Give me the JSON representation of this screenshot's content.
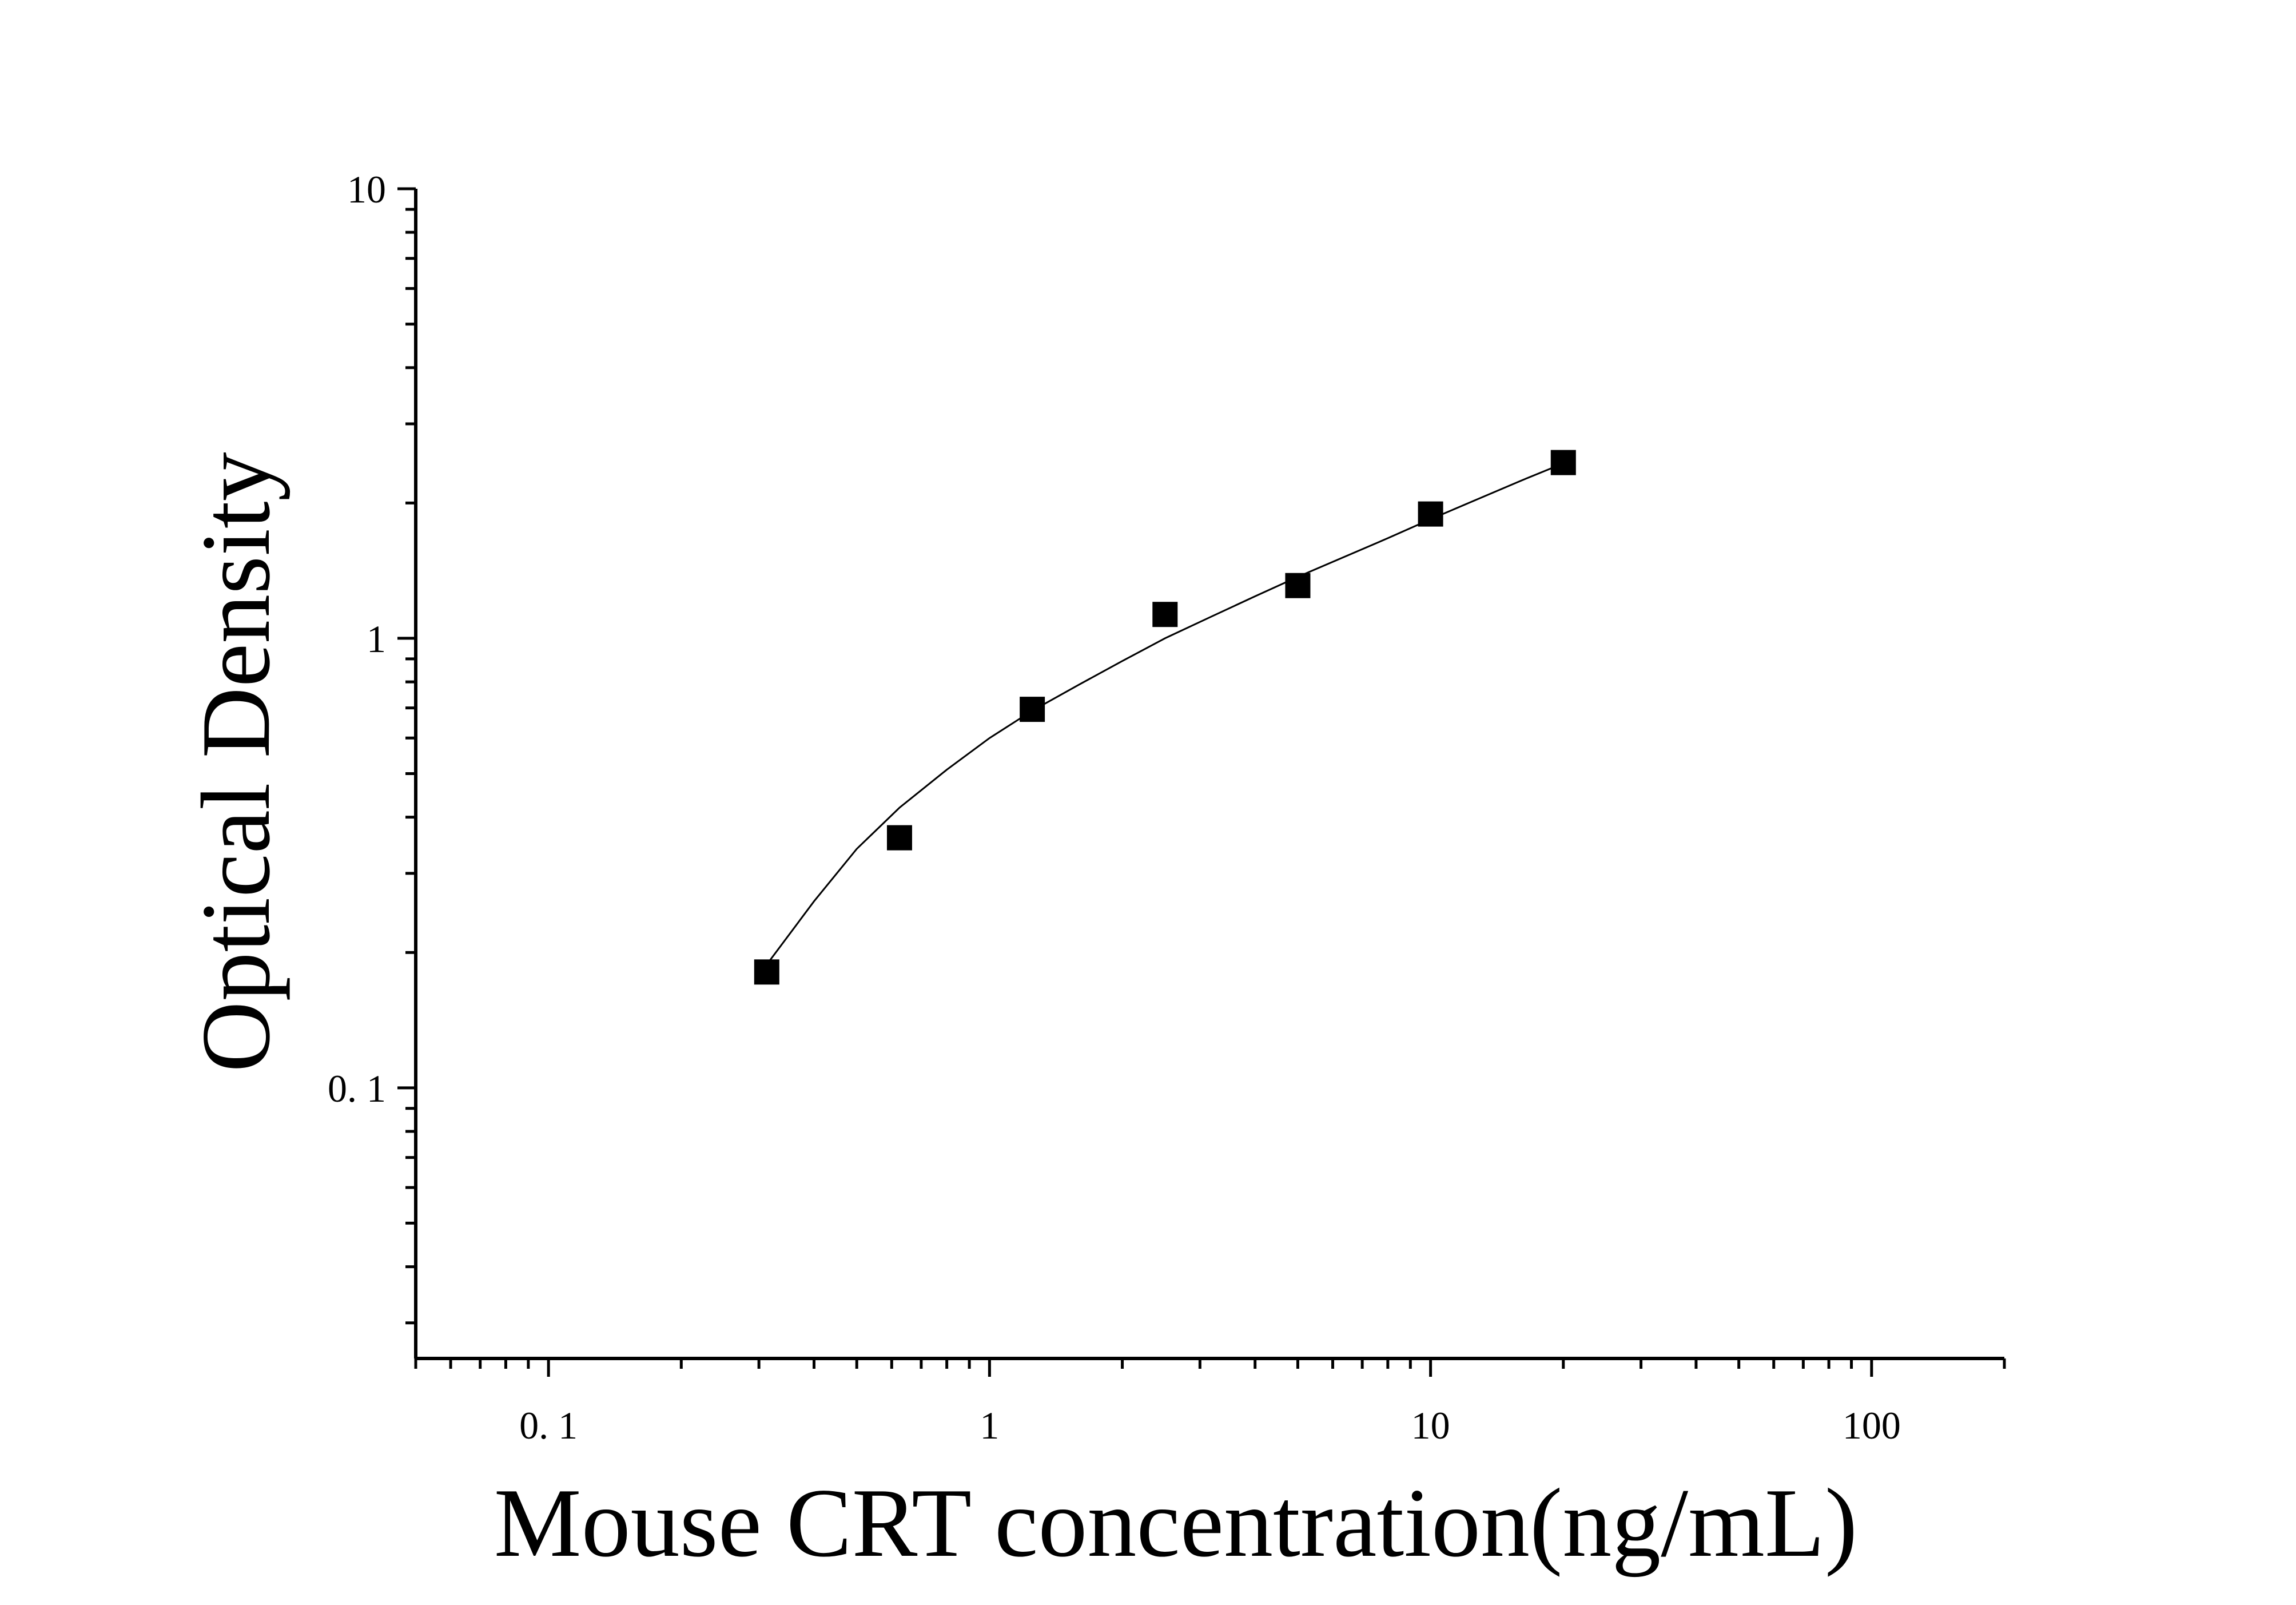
{
  "chart_data": {
    "type": "scatter",
    "title": "",
    "xlabel": "Mouse CRT concentration(ng/mL)",
    "ylabel": "Optical Density",
    "x_scale": "log",
    "y_scale": "log",
    "xlim": [
      0.05,
      200
    ],
    "ylim": [
      0.025,
      10
    ],
    "x_ticks": [
      {
        "value": 0.1,
        "label": "0. 1"
      },
      {
        "value": 1,
        "label": "1"
      },
      {
        "value": 10,
        "label": "10"
      },
      {
        "value": 100,
        "label": "100"
      }
    ],
    "y_ticks": [
      {
        "value": 0.1,
        "label": "0. 1"
      },
      {
        "value": 1,
        "label": "1"
      },
      {
        "value": 10,
        "label": "10"
      }
    ],
    "grid": false,
    "legend": "none",
    "series": [
      {
        "x": [
          0.3125,
          0.625,
          1.25,
          2.5,
          5,
          10,
          20
        ],
        "y": [
          0.181,
          0.36,
          0.695,
          1.13,
          1.31,
          1.89,
          2.46
        ],
        "marker": "square",
        "color": "#000000"
      }
    ],
    "fit_curve": {
      "x": [
        0.3125,
        0.4,
        0.5,
        0.625,
        0.8,
        1.0,
        1.25,
        1.6,
        2.0,
        2.5,
        3.2,
        4.0,
        5.0,
        6.3,
        8.0,
        10,
        12.5,
        16,
        20
      ],
      "y": [
        0.188,
        0.26,
        0.34,
        0.42,
        0.51,
        0.6,
        0.69,
        0.79,
        0.89,
        1.0,
        1.12,
        1.24,
        1.37,
        1.51,
        1.67,
        1.84,
        2.02,
        2.24,
        2.45
      ],
      "color": "#000000"
    }
  }
}
